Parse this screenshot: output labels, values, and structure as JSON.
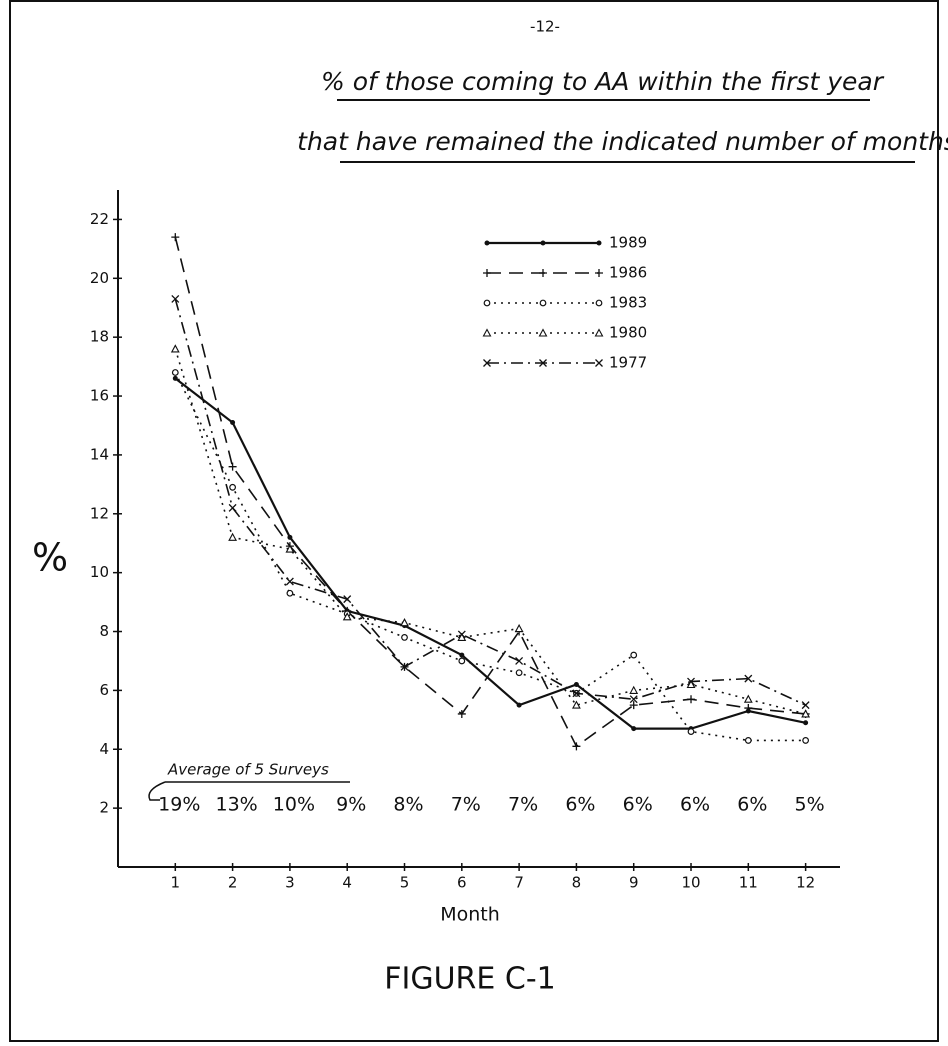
{
  "chart_data": {
    "type": "line",
    "page_number": "-12-",
    "title": "% of those coming to AA within the first year",
    "subtitle": "that have remained the indicated number of months",
    "y_label": "%",
    "x_label": "Month",
    "caption": "FIGURE C-1",
    "x": [
      1,
      2,
      3,
      4,
      5,
      6,
      7,
      8,
      9,
      10,
      11,
      12
    ],
    "xlim": [
      0,
      12.6
    ],
    "xticks": [
      1,
      2,
      3,
      4,
      5,
      6,
      7,
      8,
      9,
      10,
      11,
      12
    ],
    "ylim": [
      0,
      23
    ],
    "yticks": [
      2,
      4,
      6,
      8,
      10,
      12,
      14,
      16,
      18,
      20,
      22
    ],
    "grid": false,
    "legend": "top-right",
    "average_title": "Average of 5 Surveys",
    "average_labels": [
      "19%",
      "13%",
      "10%",
      "9%",
      "8%",
      "7%",
      "7%",
      "6%",
      "6%",
      "6%",
      "6%",
      "5%"
    ],
    "series": [
      {
        "name": "1989",
        "color": "#111111",
        "style": "solid",
        "marker": "dot",
        "values": [
          16.6,
          15.1,
          11.2,
          8.7,
          8.2,
          7.2,
          5.5,
          6.2,
          4.7,
          4.7,
          5.3,
          4.9
        ]
      },
      {
        "name": "1986",
        "color": "#111111",
        "style": "dashed",
        "marker": "plus",
        "values": [
          21.4,
          13.6,
          10.9,
          8.7,
          6.8,
          5.2,
          8.0,
          4.1,
          5.5,
          5.7,
          5.4,
          5.2
        ]
      },
      {
        "name": "1983",
        "color": "#111111",
        "style": "dotted",
        "marker": "circle",
        "values": [
          16.8,
          12.9,
          9.3,
          8.6,
          7.8,
          7.0,
          6.6,
          5.9,
          7.2,
          4.6,
          4.3,
          4.3
        ]
      },
      {
        "name": "1980",
        "color": "#111111",
        "style": "dotted",
        "marker": "triangle",
        "values": [
          17.6,
          11.2,
          10.8,
          8.5,
          8.3,
          7.8,
          8.1,
          5.5,
          6.0,
          6.2,
          5.7,
          5.2
        ]
      },
      {
        "name": "1977",
        "color": "#111111",
        "style": "dash-dot",
        "marker": "cross",
        "values": [
          19.3,
          12.2,
          9.7,
          9.1,
          6.8,
          7.9,
          7.0,
          5.9,
          5.7,
          6.3,
          6.4,
          5.5
        ]
      }
    ]
  }
}
